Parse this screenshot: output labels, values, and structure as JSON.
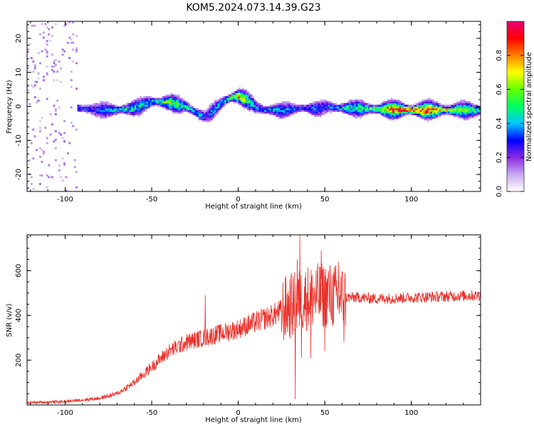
{
  "title": "KOM5.2024.073.14.39.G23",
  "chart_data": [
    {
      "type": "heatmap",
      "xlabel": "Height of straight line (km)",
      "ylabel": "Frequency (Hz)",
      "xlim": [
        -122,
        140
      ],
      "ylim": [
        -25,
        25
      ],
      "xticks": [
        -100,
        -50,
        0,
        50,
        100
      ],
      "yticks": [
        -20,
        -10,
        0,
        10,
        20
      ],
      "colorbar": {
        "label": "Normalized spectral amplitude",
        "range": [
          0,
          1
        ],
        "ticks": [
          0.0,
          0.2,
          0.4,
          0.6,
          0.8
        ],
        "tick_labels": [
          "0.0",
          "0.2",
          "0.4",
          "0.6",
          "0.8"
        ],
        "colors": [
          "#ffffff",
          "#c9a8f0",
          "#8a2be2",
          "#0000ff",
          "#00c8ff",
          "#00ff64",
          "#64ff00",
          "#ffff00",
          "#ff8000",
          "#ff0000",
          "#e6007a"
        ]
      },
      "ridge": {
        "x": [
          -92,
          -80,
          -70,
          -60,
          -50,
          -40,
          -30,
          -22,
          -19,
          -15,
          -10,
          -5,
          0,
          5,
          10,
          15,
          20,
          25,
          30,
          35,
          40,
          45,
          50,
          60,
          70,
          80,
          90,
          100,
          110,
          120,
          130,
          140
        ],
        "y": [
          -0.5,
          -1,
          -1,
          -0.5,
          1.5,
          1.2,
          0,
          -2.5,
          -3,
          -1.5,
          1,
          2.5,
          3,
          2,
          0,
          -1,
          -1,
          -1.2,
          -0.8,
          -0.5,
          -0.5,
          -0.8,
          0,
          -0.5,
          -0.5,
          -0.8,
          -0.8,
          -1,
          -1,
          -1,
          -1,
          -1.2
        ]
      },
      "ridge_amplitude": [
        0.3,
        0.3,
        0.45,
        0.45,
        0.4,
        0.55,
        0.45,
        0.4,
        0.25,
        0.35,
        0.4,
        0.5,
        0.75,
        0.55,
        0.35,
        0.35,
        0.4,
        0.35,
        0.35,
        0.3,
        0.3,
        0.35,
        0.3,
        0.45,
        0.5,
        0.55,
        0.85,
        0.9,
        0.85,
        0.7,
        0.55,
        0.5
      ]
    },
    {
      "type": "line",
      "xlabel": "Height of straight line (km)",
      "ylabel": "SNR (v/v)",
      "xlim": [
        -122,
        140
      ],
      "ylim": [
        0,
        760
      ],
      "xticks": [
        -100,
        -50,
        0,
        50,
        100
      ],
      "yticks": [
        200,
        400,
        600
      ],
      "color": "#e8302a",
      "trend": {
        "x": [
          -122,
          -100,
          -80,
          -70,
          -60,
          -50,
          -40,
          -30,
          -20,
          -10,
          0,
          10,
          20,
          30,
          40,
          50,
          60,
          70,
          80,
          100,
          120,
          140
        ],
        "y": [
          10,
          15,
          30,
          50,
          100,
          170,
          240,
          280,
          300,
          320,
          340,
          370,
          400,
          440,
          480,
          490,
          480,
          480,
          475,
          480,
          485,
          490
        ]
      },
      "spikes": [
        {
          "x": -19,
          "y": 490
        },
        {
          "x": 33,
          "y": 25
        },
        {
          "x": 34,
          "y": 650
        },
        {
          "x": 35.5,
          "y": 760
        },
        {
          "x": 36.5,
          "y": 210
        },
        {
          "x": 42,
          "y": 210
        },
        {
          "x": 48,
          "y": 690
        },
        {
          "x": 50,
          "y": 240
        },
        {
          "x": 52,
          "y": 600
        },
        {
          "x": 58,
          "y": 640
        },
        {
          "x": 61,
          "y": 280
        }
      ]
    }
  ]
}
